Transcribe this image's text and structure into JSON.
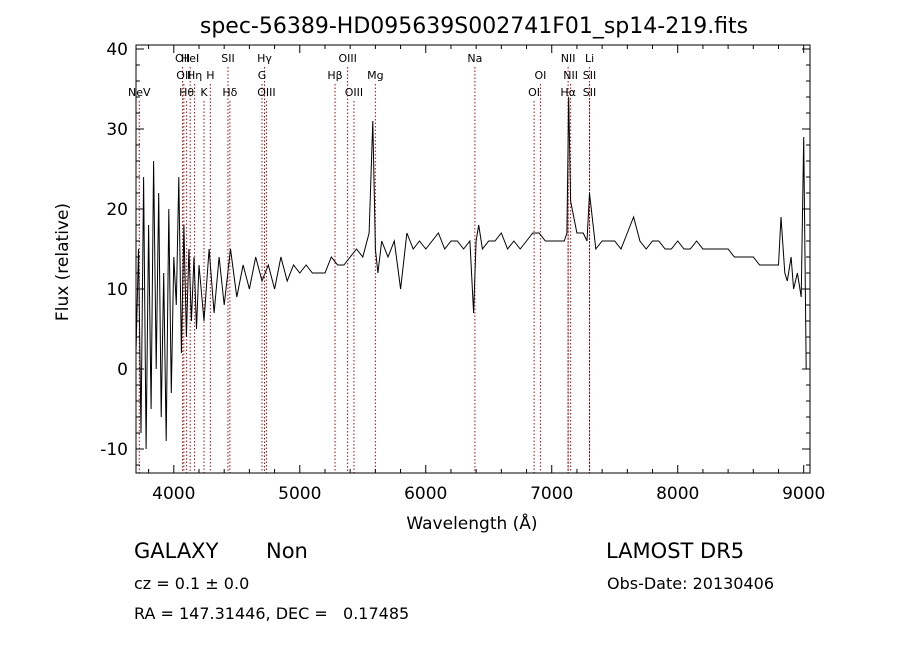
{
  "chart_data": {
    "type": "line",
    "title": "spec-56389-HD095639S002741F01_sp14-219.fits",
    "xlabel": "Wavelength (Å)",
    "ylabel": "Flux (relative)",
    "xlim": [
      3700,
      9050
    ],
    "ylim": [
      -13,
      40.5
    ],
    "xticks": [
      4000,
      5000,
      6000,
      7000,
      8000,
      9000
    ],
    "yticks": [
      -10,
      0,
      10,
      20,
      30,
      40
    ],
    "grid": false,
    "line_color": "#000000",
    "marker_color": "#a01010",
    "series": [
      {
        "x": [
          3700,
          3720,
          3740,
          3760,
          3780,
          3800,
          3820,
          3840,
          3860,
          3880,
          3900,
          3920,
          3940,
          3960,
          3980,
          4000,
          4020,
          4040,
          4060,
          4080,
          4100,
          4120,
          4140,
          4160,
          4180,
          4200,
          4240,
          4280,
          4320,
          4360,
          4400,
          4450,
          4500,
          4550,
          4600,
          4650,
          4700,
          4750,
          4800,
          4850,
          4900,
          4950,
          5000,
          5050,
          5100,
          5150,
          5200,
          5250,
          5300,
          5350,
          5400,
          5450,
          5500,
          5550,
          5580,
          5600,
          5620,
          5650,
          5700,
          5750,
          5800,
          5850,
          5900,
          5950,
          6000,
          6050,
          6100,
          6150,
          6200,
          6250,
          6300,
          6350,
          6380,
          6400,
          6420,
          6450,
          6500,
          6550,
          6600,
          6650,
          6700,
          6750,
          6800,
          6850,
          6900,
          6950,
          7000,
          7050,
          7100,
          7120,
          7135,
          7150,
          7200,
          7250,
          7280,
          7300,
          7350,
          7400,
          7450,
          7500,
          7550,
          7600,
          7650,
          7700,
          7750,
          7800,
          7850,
          7900,
          7950,
          8000,
          8050,
          8100,
          8150,
          8200,
          8250,
          8300,
          8350,
          8400,
          8450,
          8500,
          8550,
          8600,
          8650,
          8700,
          8750,
          8800,
          8820,
          8850,
          8870,
          8900,
          8920,
          8950,
          8980,
          9000,
          9020
        ],
        "y": [
          2,
          15,
          -8,
          24,
          -10,
          18,
          -5,
          26,
          0,
          22,
          -6,
          12,
          -9,
          20,
          -3,
          14,
          8,
          24,
          2,
          18,
          4,
          15,
          6,
          14,
          5,
          13,
          6,
          15,
          7,
          14,
          8,
          15,
          9,
          13,
          10,
          14,
          11,
          13,
          10,
          14,
          11,
          13,
          12,
          13,
          12,
          12,
          12,
          14,
          13,
          13,
          14,
          15,
          14,
          17,
          31,
          15,
          12,
          16,
          14,
          16,
          10,
          17,
          15,
          16,
          15,
          16,
          17,
          15,
          16,
          16,
          15,
          16,
          7,
          16,
          18,
          15,
          16,
          16,
          17,
          15,
          16,
          15,
          16,
          17,
          17,
          16,
          16,
          16,
          16,
          17,
          34,
          21,
          17,
          17,
          16,
          22,
          15,
          16,
          16,
          16,
          15,
          17,
          19,
          16,
          15,
          16,
          16,
          15,
          15,
          16,
          15,
          15,
          16,
          15,
          15,
          15,
          15,
          15,
          14,
          14,
          14,
          14,
          13,
          13,
          13,
          13,
          19,
          12,
          11,
          14,
          10,
          12,
          9,
          29,
          0
        ]
      }
    ],
    "lines": [
      {
        "name": "NeV",
        "wave": 3726,
        "row": 3
      },
      {
        "name": "OII",
        "wave": 4070,
        "row": 1
      },
      {
        "name": "OII",
        "wave": 4080,
        "row": 2
      },
      {
        "name": "Hθ",
        "wave": 4102,
        "row": 3
      },
      {
        "name": "HeI",
        "wave": 4130,
        "row": 1
      },
      {
        "name": "Hη",
        "wave": 4165,
        "row": 2
      },
      {
        "name": "K",
        "wave": 4240,
        "row": 3
      },
      {
        "name": "H",
        "wave": 4290,
        "row": 2
      },
      {
        "name": "SII",
        "wave": 4430,
        "row": 1
      },
      {
        "name": "Hδ",
        "wave": 4445,
        "row": 3
      },
      {
        "name": "Hγ",
        "wave": 4720,
        "row": 1
      },
      {
        "name": "G",
        "wave": 4700,
        "row": 2
      },
      {
        "name": "OIII",
        "wave": 4735,
        "row": 3
      },
      {
        "name": "Hβ",
        "wave": 5280,
        "row": 2
      },
      {
        "name": "OIII",
        "wave": 5380,
        "row": 1
      },
      {
        "name": "OIII",
        "wave": 5430,
        "row": 3
      },
      {
        "name": "Mg",
        "wave": 5600,
        "row": 2
      },
      {
        "name": "Na",
        "wave": 6390,
        "row": 1
      },
      {
        "name": "OI",
        "wave": 6910,
        "row": 2
      },
      {
        "name": "OI",
        "wave": 6860,
        "row": 3
      },
      {
        "name": "NII",
        "wave": 7130,
        "row": 1
      },
      {
        "name": "NII",
        "wave": 7150,
        "row": 2
      },
      {
        "name": "Hα",
        "wave": 7130,
        "row": 3
      },
      {
        "name": "Li",
        "wave": 7300,
        "row": 1
      },
      {
        "name": "SII",
        "wave": 7300,
        "row": 2
      },
      {
        "name": "SII",
        "wave": 7300,
        "row": 3
      }
    ]
  },
  "info": {
    "class": "GALAXY",
    "subclass": "Non",
    "survey": "LAMOST DR5",
    "cz": "cz = 0.1 ± 0.0",
    "obs_date": "Obs-Date: 20130406",
    "radec": "RA = 147.31446, DEC =   0.17485"
  }
}
